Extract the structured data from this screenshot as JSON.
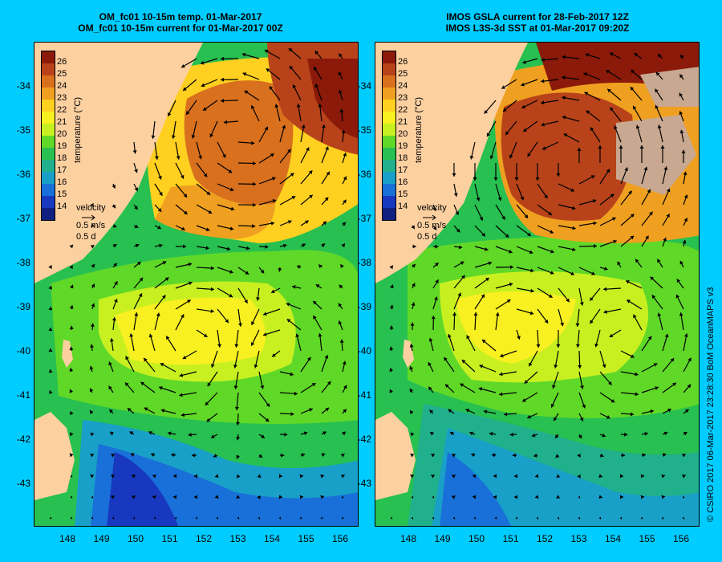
{
  "titles": {
    "left_line1": "OM_fc01 10-15m temp. 01-Mar-2017",
    "left_line2": "OM_fc01 10-15m current for 01-Mar-2017 00Z",
    "right_line1": "IMOS GSLA current for 28-Feb-2017 12Z",
    "right_line2": "IMOS L3S-3d SST at 01-Mar-2017 09:20Z"
  },
  "axes": {
    "lat_labels": [
      "-34",
      "-35",
      "-36",
      "-37",
      "-38",
      "-39",
      "-40",
      "-41",
      "-42",
      "-43"
    ],
    "lon_labels": [
      "148",
      "149",
      "150",
      "151",
      "152",
      "153",
      "154",
      "155",
      "156"
    ]
  },
  "colorbar": {
    "title": "temperature (°C)",
    "labels": [
      "26",
      "25",
      "24",
      "23",
      "22",
      "21",
      "20",
      "19",
      "18",
      "17",
      "16",
      "15",
      "14"
    ],
    "colors": [
      "#8b1a0a",
      "#b8431a",
      "#d8701e",
      "#f0a020",
      "#ffd020",
      "#f8f020",
      "#c8f020",
      "#60d828",
      "#28c050",
      "#20b08c",
      "#18a0c8",
      "#1870d8",
      "#1838c0",
      "#102080"
    ]
  },
  "velocity_legend": {
    "label": "velocity",
    "speed": "0.5 m/s",
    "duration": "0.5 d"
  },
  "credit": "© CSIRO 2017   06-Mar-2017 23:28:30 BoM OceanMAPS v3",
  "colors": {
    "background": "#00ccff",
    "land": "#fdd0a0",
    "cloud_mask": "#c8a890"
  }
}
